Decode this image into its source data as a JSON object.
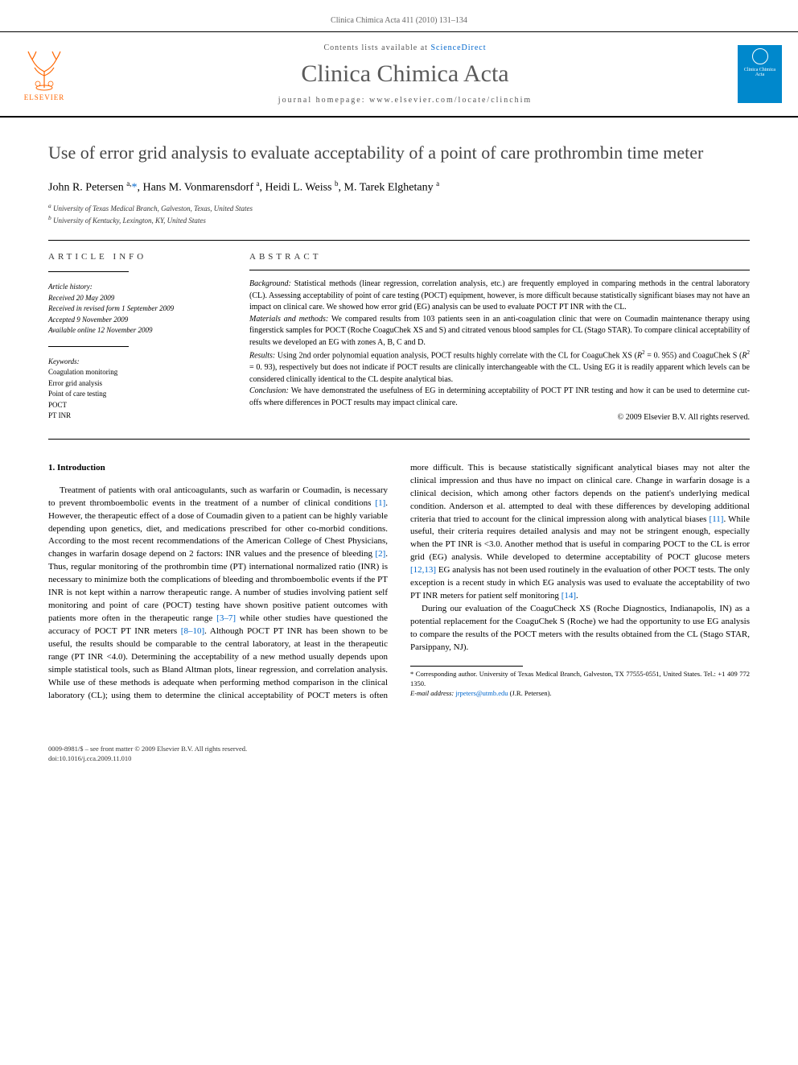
{
  "header": {
    "running_head": "Clinica Chimica Acta 411 (2010) 131–134"
  },
  "banner": {
    "elsevier_label": "ELSEVIER",
    "contents_prefix": "Contents lists available at ",
    "contents_link": "ScienceDirect",
    "journal_name": "Clinica Chimica Acta",
    "homepage_prefix": "journal homepage: ",
    "homepage_url": "www.elsevier.com/locate/clinchim",
    "cover_text": "Clinica Chimica Acta"
  },
  "title": "Use of error grid analysis to evaluate acceptability of a point of care prothrombin time meter",
  "authors_html": "John R. Petersen <sup>a,</sup><a>*</a>, Hans M. Vonmarensdorf <sup>a</sup>, Heidi L. Weiss <sup>b</sup>, M. Tarek Elghetany <sup>a</sup>",
  "affiliations": {
    "a": "University of Texas Medical Branch, Galveston, Texas, United States",
    "b": "University of Kentucky, Lexington, KY, United States"
  },
  "article_info": {
    "section_label": "article info",
    "history_label": "Article history:",
    "received": "Received 20 May 2009",
    "revised": "Received in revised form 1 September 2009",
    "accepted": "Accepted 9 November 2009",
    "online": "Available online 12 November 2009",
    "keywords_label": "Keywords:",
    "keywords": [
      "Coagulation monitoring",
      "Error grid analysis",
      "Point of care testing",
      "POCT",
      "PT INR"
    ]
  },
  "abstract": {
    "section_label": "abstract",
    "background": "Background: Statistical methods (linear regression, correlation analysis, etc.) are frequently employed in comparing methods in the central laboratory (CL). Assessing acceptability of point of care testing (POCT) equipment, however, is more difficult because statistically significant biases may not have an impact on clinical care. We showed how error grid (EG) analysis can be used to evaluate POCT PT INR with the CL.",
    "methods": "Materials and methods: We compared results from 103 patients seen in an anti-coagulation clinic that were on Coumadin maintenance therapy using fingerstick samples for POCT (Roche CoaguChek XS and S) and citrated venous blood samples for CL (Stago STAR). To compare clinical acceptability of results we developed an EG with zones A, B, C and D.",
    "results": "Results: Using 2nd order polynomial equation analysis, POCT results highly correlate with the CL for CoaguChek XS (R² = 0. 955) and CoaguChek S (R² = 0. 93), respectively but does not indicate if POCT results are clinically interchangeable with the CL. Using EG it is readily apparent which levels can be considered clinically identical to the CL despite analytical bias.",
    "conclusion": "Conclusion: We have demonstrated the usefulness of EG in determining acceptability of POCT PT INR testing and how it can be used to determine cut-offs where differences in POCT results may impact clinical care.",
    "copyright": "© 2009 Elsevier B.V. All rights reserved."
  },
  "introduction": {
    "heading": "1. Introduction",
    "para1": "Treatment of patients with oral anticoagulants, such as warfarin or Coumadin, is necessary to prevent thromboembolic events in the treatment of a number of clinical conditions [1]. However, the therapeutic effect of a dose of Coumadin given to a patient can be highly variable depending upon genetics, diet, and medications prescribed for other co-morbid conditions. According to the most recent recommendations of the American College of Chest Physicians, changes in warfarin dosage depend on 2 factors: INR values and the presence of bleeding [2]. Thus, regular monitoring of the prothrombin time (PT) international normalized ratio (INR) is necessary to minimize both the complications of bleeding and thromboembolic events if the PT INR is not kept within a narrow therapeutic range. A number of studies involving patient self monitoring and point of care (POCT) testing have shown positive patient outcomes with patients more often in the therapeutic range [3–7] while other studies have questioned the accuracy of POCT PT INR meters [8–10]. Although POCT PT INR has been shown to be useful, the results should be comparable to the central laboratory, at least in the therapeutic range",
    "para1_cont": "(PT INR <4.0). Determining the acceptability of a new method usually depends upon simple statistical tools, such as Bland Altman plots, linear regression, and correlation analysis. While use of these methods is adequate when performing method comparison in the clinical laboratory (CL); using them to determine the clinical acceptability of POCT meters is often more difficult. This is because statistically significant analytical biases may not alter the clinical impression and thus have no impact on clinical care. Change in warfarin dosage is a clinical decision, which among other factors depends on the patient's underlying medical condition. Anderson et al. attempted to deal with these differences by developing additional criteria that tried to account for the clinical impression along with analytical biases [11]. While useful, their criteria requires detailed analysis and may not be stringent enough, especially when the PT INR is <3.0. Another method that is useful in comparing POCT to the CL is error grid (EG) analysis. While developed to determine acceptability of POCT glucose meters [12,13] EG analysis has not been used routinely in the evaluation of other POCT tests. The only exception is a recent study in which EG analysis was used to evaluate the acceptability of two PT INR meters for patient self monitoring [14].",
    "para2": "During our evaluation of the CoaguCheck XS (Roche Diagnostics, Indianapolis, IN) as a potential replacement for the CoaguChek S (Roche) we had the opportunity to use EG analysis to compare the results of the POCT meters with the results obtained from the CL (Stago STAR, Parsippany, NJ)."
  },
  "footnotes": {
    "corresponding": "* Corresponding author. University of Texas Medical Branch, Galveston, TX 77555-0551, United States. Tel.: +1 409 772 1350.",
    "email_label": "E-mail address: ",
    "email": "jrpeters@utmb.edu",
    "email_suffix": " (J.R. Petersen)."
  },
  "footer": {
    "line1": "0009-8981/$ – see front matter © 2009 Elsevier B.V. All rights reserved.",
    "line2": "doi:10.1016/j.cca.2009.11.010"
  },
  "colors": {
    "link": "#0066cc",
    "elsevier_orange": "#ff6600",
    "cover_blue": "#0088cc",
    "text_gray": "#5a5a5a"
  }
}
